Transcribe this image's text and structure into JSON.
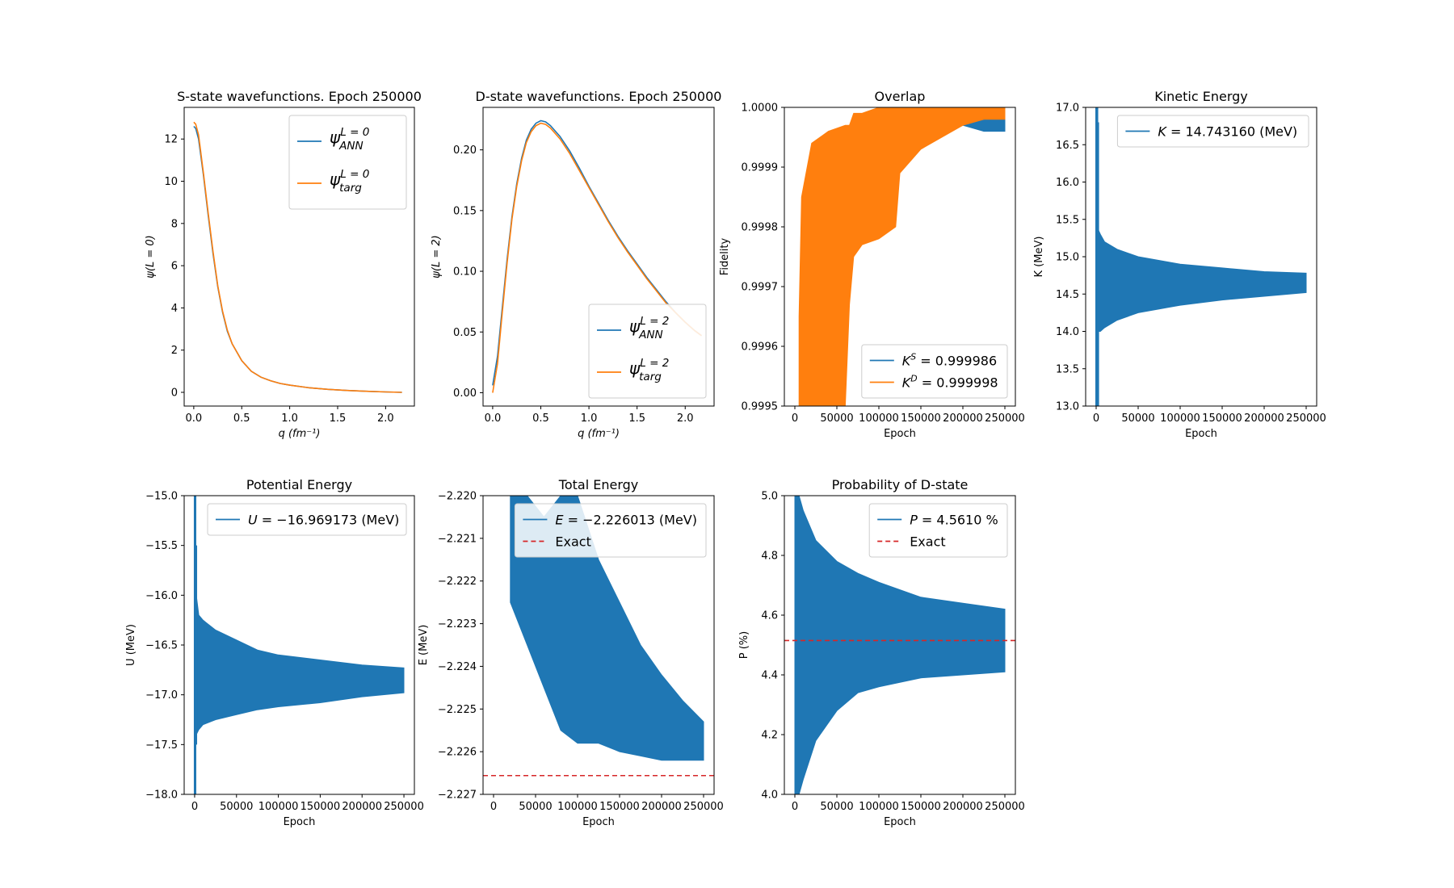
{
  "colors": {
    "blue": "#1f77b4",
    "orange": "#ff7f0e",
    "red": "#d62728",
    "axis": "#000000",
    "legend_border": "#cccccc"
  },
  "chart_data": [
    {
      "id": "s_state",
      "type": "line",
      "title": "S-state wavefunctions. Epoch 250000",
      "xlabel": "q (fm⁻¹)",
      "ylabel": "ψ(L = 0)",
      "xlim": [
        -0.1,
        2.3
      ],
      "ylim": [
        -0.65,
        13.5
      ],
      "xticks": [
        0.0,
        0.5,
        1.0,
        1.5,
        2.0
      ],
      "xticklabels": [
        "0.0",
        "0.5",
        "1.0",
        "1.5",
        "2.0"
      ],
      "yticks": [
        0,
        2,
        4,
        6,
        8,
        10,
        12
      ],
      "yticklabels": [
        "0",
        "2",
        "4",
        "6",
        "8",
        "10",
        "12"
      ],
      "legend": {
        "position": "top-right",
        "large": true,
        "entries": [
          {
            "base": "ψ",
            "sup": "L = 0",
            "sub": "ANN",
            "color": "blue",
            "style": "solid"
          },
          {
            "base": "ψ",
            "sup": "L = 0",
            "sub": "targ",
            "color": "orange",
            "style": "solid"
          }
        ]
      },
      "series": [
        {
          "color": "blue",
          "x": [
            0.0,
            0.02,
            0.05,
            0.1,
            0.15,
            0.2,
            0.25,
            0.3,
            0.35,
            0.4,
            0.5,
            0.6,
            0.7,
            0.8,
            0.9,
            1.0,
            1.2,
            1.4,
            1.6,
            1.8,
            2.0,
            2.17
          ],
          "y": [
            12.6,
            12.5,
            12.0,
            10.3,
            8.4,
            6.6,
            5.0,
            3.8,
            2.9,
            2.3,
            1.5,
            1.0,
            0.72,
            0.55,
            0.42,
            0.34,
            0.22,
            0.14,
            0.09,
            0.05,
            0.02,
            0.0
          ]
        },
        {
          "color": "orange",
          "x": [
            0.0,
            0.02,
            0.05,
            0.1,
            0.15,
            0.2,
            0.25,
            0.3,
            0.35,
            0.4,
            0.5,
            0.6,
            0.7,
            0.8,
            0.9,
            1.0,
            1.2,
            1.4,
            1.6,
            1.8,
            2.0,
            2.17
          ],
          "y": [
            12.8,
            12.7,
            12.2,
            10.4,
            8.5,
            6.7,
            5.05,
            3.85,
            2.95,
            2.3,
            1.5,
            1.0,
            0.72,
            0.55,
            0.42,
            0.34,
            0.22,
            0.14,
            0.09,
            0.05,
            0.02,
            0.0
          ]
        }
      ]
    },
    {
      "id": "d_state",
      "type": "line",
      "title": "D-state wavefunctions. Epoch 250000",
      "xlabel": "q (fm⁻¹)",
      "ylabel": "ψ(L = 2)",
      "xlim": [
        -0.1,
        2.3
      ],
      "ylim": [
        -0.011,
        0.235
      ],
      "xticks": [
        0.0,
        0.5,
        1.0,
        1.5,
        2.0
      ],
      "xticklabels": [
        "0.0",
        "0.5",
        "1.0",
        "1.5",
        "2.0"
      ],
      "yticks": [
        0.0,
        0.05,
        0.1,
        0.15,
        0.2
      ],
      "yticklabels": [
        "0.00",
        "0.05",
        "0.10",
        "0.15",
        "0.20"
      ],
      "legend": {
        "position": "lower-right",
        "large": true,
        "entries": [
          {
            "base": "ψ",
            "sup": "L = 2",
            "sub": "ANN",
            "color": "blue",
            "style": "solid"
          },
          {
            "base": "ψ",
            "sup": "L = 2",
            "sub": "targ",
            "color": "orange",
            "style": "solid"
          }
        ]
      },
      "series": [
        {
          "color": "blue",
          "x": [
            0.0,
            0.05,
            0.1,
            0.15,
            0.2,
            0.25,
            0.3,
            0.35,
            0.4,
            0.45,
            0.5,
            0.55,
            0.6,
            0.7,
            0.8,
            0.9,
            1.0,
            1.1,
            1.2,
            1.3,
            1.4,
            1.5,
            1.6,
            1.7,
            1.8,
            1.9,
            2.0,
            2.1,
            2.17
          ],
          "y": [
            0.006,
            0.03,
            0.07,
            0.11,
            0.145,
            0.172,
            0.193,
            0.208,
            0.217,
            0.222,
            0.224,
            0.223,
            0.22,
            0.211,
            0.199,
            0.185,
            0.17,
            0.156,
            0.142,
            0.129,
            0.117,
            0.106,
            0.095,
            0.085,
            0.075,
            0.066,
            0.058,
            0.051,
            0.047
          ]
        },
        {
          "color": "orange",
          "x": [
            0.0,
            0.05,
            0.1,
            0.15,
            0.2,
            0.25,
            0.3,
            0.35,
            0.4,
            0.45,
            0.5,
            0.55,
            0.6,
            0.7,
            0.8,
            0.9,
            1.0,
            1.1,
            1.2,
            1.3,
            1.4,
            1.5,
            1.6,
            1.7,
            1.8,
            1.9,
            2.0,
            2.1,
            2.17
          ],
          "y": [
            0.0,
            0.024,
            0.066,
            0.107,
            0.143,
            0.17,
            0.191,
            0.206,
            0.215,
            0.22,
            0.222,
            0.221,
            0.218,
            0.209,
            0.197,
            0.183,
            0.169,
            0.155,
            0.141,
            0.128,
            0.116,
            0.105,
            0.094,
            0.084,
            0.074,
            0.066,
            0.058,
            0.051,
            0.047
          ]
        }
      ]
    },
    {
      "id": "overlap",
      "type": "line",
      "title": "Overlap",
      "xlabel": "Epoch",
      "ylabel": "Fidelity",
      "xlim": [
        -12500,
        262500
      ],
      "ylim": [
        0.9995,
        1.0
      ],
      "xticks": [
        0,
        50000,
        100000,
        150000,
        200000,
        250000
      ],
      "xticklabels": [
        "0",
        "50000",
        "100000",
        "150000",
        "200000",
        "250000"
      ],
      "yticks": [
        0.9995,
        0.9996,
        0.9997,
        0.9998,
        0.9999,
        1.0
      ],
      "yticklabels": [
        "0.9995",
        "0.9996",
        "0.9997",
        "0.9998",
        "0.9999",
        "1.0000"
      ],
      "legend": {
        "position": "lower-right",
        "entries": [
          {
            "base": "K",
            "sup": "S",
            "tail": " = 0.999986",
            "color": "blue",
            "style": "solid"
          },
          {
            "base": "K",
            "sup": "D",
            "tail": " = 0.999998",
            "color": "orange",
            "style": "solid"
          }
        ]
      },
      "series": [
        {
          "color": "blue",
          "kind": "band",
          "x": [
            5000,
            60000,
            120000,
            125000,
            130000,
            150000,
            175000,
            200000,
            225000,
            250000
          ],
          "upper": [
            1.0,
            1.0,
            1.0,
            1.0,
            1.0,
            1.0,
            1.0,
            0.99999,
            0.99999,
            0.99999
          ],
          "lower": [
            1.0,
            1.0,
            1.0,
            0.99996,
            0.99997,
            0.99997,
            0.99997,
            0.99997,
            0.99996,
            0.99996
          ]
        },
        {
          "color": "orange",
          "kind": "band",
          "x": [
            5000,
            8000,
            20000,
            40000,
            60000,
            65000,
            70000,
            80000,
            100000,
            120000,
            125000,
            150000,
            175000,
            200000,
            225000,
            250000
          ],
          "upper": [
            0.99965,
            0.99985,
            0.99994,
            0.99996,
            0.99997,
            0.99997,
            0.99999,
            0.99999,
            1.0,
            1.0,
            1.0,
            1.0,
            1.0,
            1.0,
            1.0,
            1.0
          ],
          "lower": [
            0.9995,
            0.9995,
            0.9995,
            0.9995,
            0.9995,
            0.99967,
            0.99975,
            0.99977,
            0.99978,
            0.9998,
            0.99989,
            0.99993,
            0.99995,
            0.99997,
            0.99998,
            0.99998
          ]
        }
      ]
    },
    {
      "id": "kinetic",
      "type": "line",
      "title": "Kinetic Energy",
      "xlabel": "Epoch",
      "ylabel": "K (MeV)",
      "xlim": [
        -12500,
        262500
      ],
      "ylim": [
        13.0,
        17.0
      ],
      "xticks": [
        0,
        50000,
        100000,
        150000,
        200000,
        250000
      ],
      "xticklabels": [
        "0",
        "50000",
        "100000",
        "150000",
        "200000",
        "250000"
      ],
      "yticks": [
        13.0,
        13.5,
        14.0,
        14.5,
        15.0,
        15.5,
        16.0,
        16.5,
        17.0
      ],
      "yticklabels": [
        "13.0",
        "13.5",
        "14.0",
        "14.5",
        "15.0",
        "15.5",
        "16.0",
        "16.5",
        "17.0"
      ],
      "legend": {
        "position": "top-right",
        "entries": [
          {
            "base": "K",
            "tail": " = 14.743160 (MeV)",
            "color": "blue",
            "style": "solid"
          }
        ]
      },
      "series": [
        {
          "color": "blue",
          "kind": "band",
          "x": [
            1000,
            5000,
            10000,
            25000,
            50000,
            75000,
            100000,
            150000,
            200000,
            250000
          ],
          "upper": [
            15.4,
            15.3,
            15.2,
            15.1,
            15.0,
            14.95,
            14.9,
            14.85,
            14.8,
            14.78
          ],
          "lower": [
            14.0,
            14.0,
            14.05,
            14.15,
            14.25,
            14.3,
            14.35,
            14.42,
            14.47,
            14.52
          ]
        },
        {
          "color": "blue",
          "kind": "spike",
          "x": [
            0,
            1500,
            2500
          ],
          "y_top": [
            17.0,
            17.0,
            16.8
          ],
          "y_bottom": [
            13.0,
            13.0,
            13.0
          ]
        }
      ]
    },
    {
      "id": "potential",
      "type": "line",
      "title": "Potential Energy",
      "xlabel": "Epoch",
      "ylabel": "U (MeV)",
      "xlim": [
        -12500,
        262500
      ],
      "ylim": [
        -18.0,
        -15.0
      ],
      "xticks": [
        0,
        50000,
        100000,
        150000,
        200000,
        250000
      ],
      "xticklabels": [
        "0",
        "50000",
        "100000",
        "150000",
        "200000",
        "250000"
      ],
      "yticks": [
        -18.0,
        -17.5,
        -17.0,
        -16.5,
        -16.0,
        -15.5,
        -15.0
      ],
      "yticklabels": [
        "−18.0",
        "−17.5",
        "−17.0",
        "−16.5",
        "−16.0",
        "−15.5",
        "−15.0"
      ],
      "legend": {
        "position": "top-right",
        "entries": [
          {
            "base": "U",
            "tail": " = −16.969173 (MeV)",
            "color": "blue",
            "style": "solid"
          }
        ]
      },
      "series": [
        {
          "color": "blue",
          "kind": "band",
          "x": [
            2000,
            5000,
            10000,
            25000,
            50000,
            75000,
            100000,
            150000,
            200000,
            250000
          ],
          "upper": [
            -16.0,
            -16.2,
            -16.25,
            -16.35,
            -16.45,
            -16.55,
            -16.6,
            -16.65,
            -16.7,
            -16.73
          ],
          "lower": [
            -17.4,
            -17.35,
            -17.3,
            -17.25,
            -17.2,
            -17.15,
            -17.12,
            -17.08,
            -17.02,
            -16.98
          ]
        },
        {
          "color": "blue",
          "kind": "spike",
          "x": [
            0,
            1000,
            2000
          ],
          "y_top": [
            -15.0,
            -15.0,
            -15.5
          ],
          "y_bottom": [
            -18.0,
            -18.0,
            -17.5
          ]
        }
      ]
    },
    {
      "id": "total",
      "type": "line",
      "title": "Total Energy",
      "xlabel": "Epoch",
      "ylabel": "E (MeV)",
      "xlim": [
        -12500,
        262500
      ],
      "ylim": [
        -2.227,
        -2.22
      ],
      "xticks": [
        0,
        50000,
        100000,
        150000,
        200000,
        250000
      ],
      "xticklabels": [
        "0",
        "50000",
        "100000",
        "150000",
        "200000",
        "250000"
      ],
      "yticks": [
        -2.227,
        -2.226,
        -2.225,
        -2.224,
        -2.223,
        -2.222,
        -2.221,
        -2.22
      ],
      "yticklabels": [
        "−2.227",
        "−2.226",
        "−2.225",
        "−2.224",
        "−2.223",
        "−2.222",
        "−2.221",
        "−2.220"
      ],
      "legend": {
        "position": "top-right",
        "entries": [
          {
            "base": "E",
            "tail": " = −2.226013 (MeV)",
            "color": "blue",
            "style": "solid"
          },
          {
            "text": "Exact",
            "color": "red",
            "style": "dashed"
          }
        ]
      },
      "hline": {
        "y": -2.22656,
        "color": "red",
        "style": "dashed"
      },
      "series": [
        {
          "color": "blue",
          "kind": "band",
          "x": [
            20000,
            40000,
            60000,
            80000,
            100000,
            125000,
            150000,
            175000,
            200000,
            225000,
            250000
          ],
          "upper": [
            -2.22,
            -2.22,
            -2.2205,
            -2.22,
            -2.22,
            -2.2215,
            -2.2225,
            -2.2235,
            -2.2242,
            -2.2248,
            -2.2253
          ],
          "lower": [
            -2.2225,
            -2.2235,
            -2.2245,
            -2.2255,
            -2.2258,
            -2.2258,
            -2.226,
            -2.2261,
            -2.2262,
            -2.2262,
            -2.2262
          ]
        }
      ]
    },
    {
      "id": "probability",
      "type": "line",
      "title": "Probability of D-state",
      "xlabel": "Epoch",
      "ylabel": "P (%)",
      "xlim": [
        -12500,
        262500
      ],
      "ylim": [
        4.0,
        5.0
      ],
      "xticks": [
        0,
        50000,
        100000,
        150000,
        200000,
        250000
      ],
      "xticklabels": [
        "0",
        "50000",
        "100000",
        "150000",
        "200000",
        "250000"
      ],
      "yticks": [
        4.0,
        4.2,
        4.4,
        4.6,
        4.8,
        5.0
      ],
      "yticklabels": [
        "4.0",
        "4.2",
        "4.4",
        "4.6",
        "4.8",
        "5.0"
      ],
      "legend": {
        "position": "top-right",
        "entries": [
          {
            "base": "P",
            "tail": " = 4.5610 %",
            "color": "blue",
            "style": "solid"
          },
          {
            "text": "Exact",
            "color": "red",
            "style": "dashed"
          }
        ]
      },
      "hline": {
        "y": 4.515,
        "color": "red",
        "style": "dashed"
      },
      "series": [
        {
          "color": "blue",
          "kind": "band",
          "x": [
            0,
            5000,
            10000,
            25000,
            50000,
            75000,
            100000,
            150000,
            200000,
            250000
          ],
          "upper": [
            5.0,
            5.0,
            4.95,
            4.85,
            4.78,
            4.74,
            4.71,
            4.66,
            4.64,
            4.62
          ],
          "lower": [
            4.0,
            4.0,
            4.05,
            4.18,
            4.28,
            4.34,
            4.36,
            4.39,
            4.4,
            4.41
          ]
        }
      ]
    }
  ]
}
